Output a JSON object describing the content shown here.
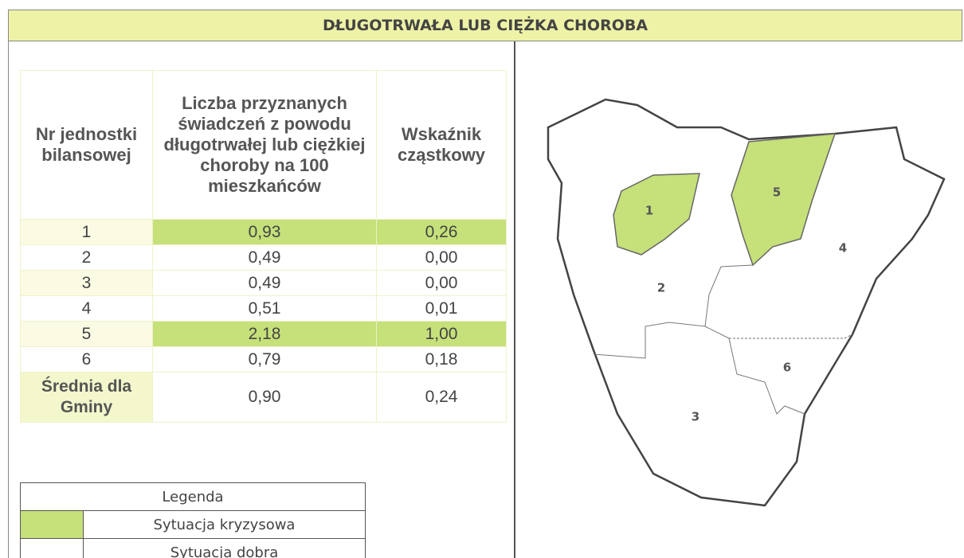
{
  "header": {
    "title": "DŁUGOTRWAŁA LUB CIĘŻKA CHOROBA"
  },
  "table": {
    "columns": [
      "Nr jednostki bilansowej",
      "Liczba przyznanych świadczeń z powodu długotrwałej lub ciężkiej choroby na 100 mieszkańców",
      "Wskaźnik cząstkowy"
    ],
    "rows": [
      {
        "cells": [
          "1",
          "0,93",
          "0,26"
        ],
        "color": "#c6e07a"
      },
      {
        "cells": [
          "2",
          "0,49",
          "0,00"
        ]
      },
      {
        "cells": [
          "3",
          "0,49",
          "0,00"
        ]
      },
      {
        "cells": [
          "4",
          "0,51",
          "0,01"
        ]
      },
      {
        "cells": [
          "5",
          "2,18",
          "1,00"
        ],
        "color": "#c6e07a"
      },
      {
        "cells": [
          "6",
          "0,79",
          "0,18"
        ]
      },
      {
        "cells": [
          "Średnia dla Gminy",
          "0,90",
          "0,24"
        ]
      }
    ]
  },
  "legend": {
    "title": "Legenda",
    "items": [
      {
        "label": "Sytuacja kryzysowa",
        "color": "#c6e07a"
      },
      {
        "label": "Sytuacja dobra",
        "color": "#ffffff"
      }
    ]
  },
  "map": {
    "regions": [
      {
        "label": "1",
        "color": "#c6e07a"
      },
      {
        "label": "2",
        "color": "#ffffff"
      },
      {
        "label": "3",
        "color": "#ffffff"
      },
      {
        "label": "4",
        "color": "#ffffff"
      },
      {
        "label": "5",
        "color": "#c6e07a"
      },
      {
        "label": "6",
        "color": "#ffffff"
      }
    ]
  }
}
